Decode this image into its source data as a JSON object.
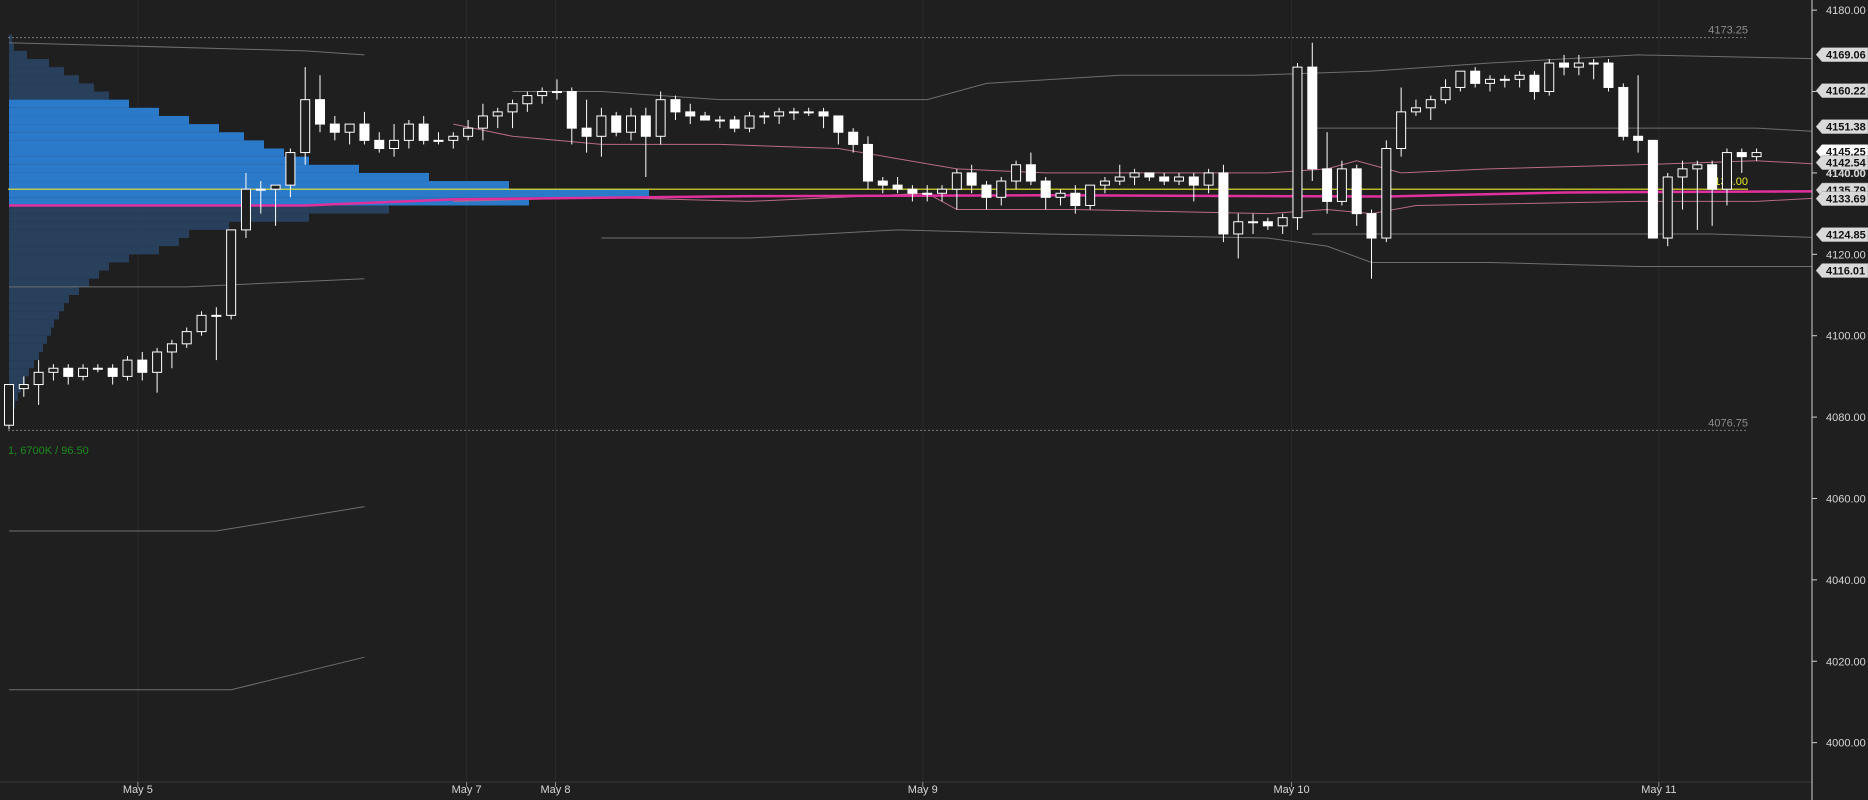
{
  "chart_data": {
    "type": "candlestick",
    "y_axis": {
      "ylim": [
        3995,
        4182
      ],
      "ticks": [
        "4180.00",
        "4160.00",
        "4140.00",
        "4120.00",
        "4100.00",
        "4080.00",
        "4060.00",
        "4040.00",
        "4020.00",
        "4000.00"
      ]
    },
    "x_axis": {
      "labels": [
        {
          "text": "May 5",
          "bar": 8.7
        },
        {
          "text": "May 7",
          "bar": 30.9
        },
        {
          "text": "May 8",
          "bar": 36.9
        },
        {
          "text": "May 9",
          "bar": 61.7
        },
        {
          "text": "May 10",
          "bar": 86.6
        },
        {
          "text": "May 11",
          "bar": 111.4
        }
      ],
      "bar_count": 123
    },
    "price_tags": [
      {
        "text": "4169.06",
        "value": 4169.06,
        "style": "light"
      },
      {
        "text": "4160.22",
        "value": 4160.22,
        "style": "light"
      },
      {
        "text": "4151.38",
        "value": 4151.38,
        "style": "light"
      },
      {
        "text": "4145.25",
        "value": 4145.25,
        "style": "white"
      },
      {
        "text": "4142.54",
        "value": 4142.54,
        "style": "light"
      },
      {
        "text": "4140.00",
        "value": 4140.0,
        "style": "plain"
      },
      {
        "text": "4135.79",
        "value": 4135.79,
        "style": "light"
      },
      {
        "text": "4133.69",
        "value": 4133.69,
        "style": "light"
      },
      {
        "text": "4124.85",
        "value": 4124.85,
        "style": "light"
      },
      {
        "text": "4116.01",
        "value": 4116.01,
        "style": "light"
      }
    ],
    "reference_lines": [
      {
        "label": "4173.25",
        "value": 4173.25
      },
      {
        "label": "4076.75",
        "value": 4076.75
      }
    ],
    "poc": {
      "label": "4136.00",
      "value": 4136.0
    },
    "volume_label": "1, 6700K / 96.50",
    "colors": {
      "background": "#1f1f1f",
      "candle_up_fill": "#1f1f1f",
      "candle_down_fill": "#ffffff",
      "candle_outline": "#ffffff",
      "profile_value_area": "#2b79c9",
      "profile_outside": "#28405c",
      "poc_line": "#e8e82a",
      "vwap": "#e0309e",
      "band_inner": "#b86a86",
      "band_outer": "#6e6e6e",
      "volume_label": "#1c8a1c"
    },
    "candles": [
      [
        4078,
        4088,
        4077,
        4088
      ],
      [
        4087,
        4090,
        4085,
        4088
      ],
      [
        4088,
        4094,
        4083,
        4091
      ],
      [
        4091,
        4093,
        4089,
        4092
      ],
      [
        4092,
        4093,
        4088,
        4090
      ],
      [
        4090,
        4093,
        4089,
        4092
      ],
      [
        4092,
        4093,
        4091,
        4092
      ],
      [
        4092,
        4093,
        4088,
        4090
      ],
      [
        4090,
        4095,
        4089,
        4094
      ],
      [
        4094,
        4096,
        4089,
        4091
      ],
      [
        4091,
        4097,
        4086,
        4096
      ],
      [
        4096,
        4099,
        4092,
        4098
      ],
      [
        4098,
        4102,
        4097,
        4101
      ],
      [
        4101,
        4106,
        4100,
        4105
      ],
      [
        4105,
        4107,
        4094,
        4105
      ],
      [
        4105,
        4126,
        4104,
        4126
      ],
      [
        4126,
        4140,
        4124,
        4136
      ],
      [
        4136,
        4138,
        4130,
        4136
      ],
      [
        4136,
        4137,
        4127,
        4137
      ],
      [
        4137,
        4146,
        4134,
        4145
      ],
      [
        4145,
        4166,
        4142,
        4158
      ],
      [
        4158,
        4164,
        4150,
        4152
      ],
      [
        4152,
        4154,
        4148,
        4150
      ],
      [
        4150,
        4152,
        4147,
        4152
      ],
      [
        4152,
        4155,
        4147,
        4148
      ],
      [
        4148,
        4150,
        4145,
        4146
      ],
      [
        4146,
        4152,
        4144,
        4148
      ],
      [
        4148,
        4153,
        4146,
        4152
      ],
      [
        4152,
        4154,
        4147,
        4148
      ],
      [
        4148,
        4150,
        4147,
        4148
      ],
      [
        4148,
        4150,
        4146,
        4149
      ],
      [
        4149,
        4153,
        4148,
        4151
      ],
      [
        4151,
        4157,
        4148,
        4154
      ],
      [
        4154,
        4156,
        4151,
        4155
      ],
      [
        4155,
        4158,
        4151,
        4157
      ],
      [
        4157,
        4160,
        4155,
        4159
      ],
      [
        4159,
        4161,
        4157,
        4160
      ],
      [
        4160,
        4163,
        4158,
        4160
      ],
      [
        4160,
        4161,
        4147,
        4151
      ],
      [
        4151,
        4158,
        4145,
        4149
      ],
      [
        4149,
        4156,
        4144,
        4154
      ],
      [
        4154,
        4155,
        4149,
        4150
      ],
      [
        4150,
        4156,
        4148,
        4154
      ],
      [
        4154,
        4156,
        4139,
        4149
      ],
      [
        4149,
        4160,
        4147,
        4158
      ],
      [
        4158,
        4159,
        4153,
        4155
      ],
      [
        4155,
        4157,
        4152,
        4154
      ],
      [
        4154,
        4155,
        4153,
        4153
      ],
      [
        4153,
        4154,
        4151,
        4153
      ],
      [
        4153,
        4154,
        4150,
        4151
      ],
      [
        4151,
        4155,
        4150,
        4154
      ],
      [
        4154,
        4155,
        4152,
        4154
      ],
      [
        4154,
        4156,
        4152,
        4155
      ],
      [
        4155,
        4156,
        4153,
        4155
      ],
      [
        4155,
        4156,
        4154,
        4155
      ],
      [
        4155,
        4156,
        4151,
        4154
      ],
      [
        4154,
        4154,
        4147,
        4150
      ],
      [
        4150,
        4151,
        4145,
        4147
      ],
      [
        4147,
        4149,
        4136,
        4138
      ],
      [
        4138,
        4139,
        4135,
        4137
      ],
      [
        4137,
        4139,
        4135,
        4136
      ],
      [
        4136,
        4137,
        4133,
        4135
      ],
      [
        4135,
        4137,
        4133,
        4135
      ],
      [
        4135,
        4137,
        4133,
        4136
      ],
      [
        4136,
        4141,
        4131,
        4140
      ],
      [
        4140,
        4142,
        4135,
        4137
      ],
      [
        4137,
        4138,
        4131,
        4134
      ],
      [
        4134,
        4139,
        4132,
        4138
      ],
      [
        4138,
        4143,
        4136,
        4142
      ],
      [
        4142,
        4145,
        4137,
        4138
      ],
      [
        4138,
        4139,
        4131,
        4134
      ],
      [
        4134,
        4136,
        4132,
        4135
      ],
      [
        4135,
        4137,
        4130,
        4132
      ],
      [
        4132,
        4137,
        4131,
        4137
      ],
      [
        4137,
        4139,
        4135,
        4138
      ],
      [
        4138,
        4142,
        4137,
        4139
      ],
      [
        4139,
        4141,
        4137,
        4140
      ],
      [
        4140,
        4140,
        4138,
        4139
      ],
      [
        4139,
        4140,
        4137,
        4138
      ],
      [
        4138,
        4140,
        4137,
        4139
      ],
      [
        4139,
        4140,
        4133,
        4137
      ],
      [
        4137,
        4141,
        4135,
        4140
      ],
      [
        4140,
        4142,
        4123,
        4125
      ],
      [
        4125,
        4130,
        4119,
        4128
      ],
      [
        4128,
        4130,
        4125,
        4128
      ],
      [
        4128,
        4129,
        4126,
        4127
      ],
      [
        4127,
        4130,
        4125,
        4129
      ],
      [
        4129,
        4167,
        4126,
        4166
      ],
      [
        4166,
        4172,
        4138,
        4141
      ],
      [
        4141,
        4150,
        4130,
        4133
      ],
      [
        4133,
        4143,
        4132,
        4141
      ],
      [
        4141,
        4142,
        4127,
        4130
      ],
      [
        4130,
        4131,
        4114,
        4124
      ],
      [
        4124,
        4148,
        4123,
        4146
      ],
      [
        4146,
        4161,
        4144,
        4155
      ],
      [
        4155,
        4158,
        4154,
        4156
      ],
      [
        4156,
        4159,
        4153,
        4158
      ],
      [
        4158,
        4163,
        4157,
        4161
      ],
      [
        4161,
        4165,
        4160,
        4165
      ],
      [
        4165,
        4166,
        4161,
        4162
      ],
      [
        4162,
        4164,
        4160,
        4163
      ],
      [
        4163,
        4164,
        4161,
        4163
      ],
      [
        4163,
        4165,
        4161,
        4164
      ],
      [
        4164,
        4165,
        4158,
        4160
      ],
      [
        4160,
        4168,
        4159,
        4167
      ],
      [
        4167,
        4169,
        4164,
        4166
      ],
      [
        4166,
        4169,
        4164,
        4167
      ],
      [
        4167,
        4168,
        4163,
        4167
      ],
      [
        4167,
        4168,
        4160,
        4161
      ],
      [
        4161,
        4162,
        4148,
        4149
      ],
      [
        4149,
        4164,
        4145,
        4148
      ],
      [
        4148,
        4148,
        4124,
        4124
      ],
      [
        4124,
        4140,
        4122,
        4139
      ],
      [
        4139,
        4143,
        4131,
        4141
      ],
      [
        4141,
        4143,
        4126,
        4142
      ],
      [
        4142,
        4143,
        4127,
        4136
      ],
      [
        4136,
        4146,
        4132,
        4145
      ],
      [
        4145,
        4146,
        4140,
        4144
      ],
      [
        4144,
        4146,
        4143,
        4145
      ]
    ],
    "vwap": [
      [
        0,
        4132
      ],
      [
        20,
        4132
      ],
      [
        30,
        4133.5
      ],
      [
        50,
        4134.3
      ],
      [
        70,
        4134.5
      ],
      [
        85,
        4134.3
      ],
      [
        93,
        4134.2
      ],
      [
        105,
        4135.2
      ],
      [
        123,
        4135.5
      ]
    ],
    "bands": [
      [
        [
          0,
          4172
        ],
        [
          20,
          4170
        ],
        [
          24,
          4169
        ]
      ],
      [
        [
          0,
          4112
        ],
        [
          12,
          4112
        ],
        [
          24,
          4114
        ]
      ],
      [
        [
          0,
          4052
        ],
        [
          14,
          4052
        ],
        [
          24,
          4058
        ]
      ],
      [
        [
          0,
          4013
        ],
        [
          15,
          4013
        ],
        [
          24,
          4021
        ]
      ],
      [
        [
          30,
          4152
        ],
        [
          34,
          4149
        ],
        [
          40,
          4147
        ],
        [
          48,
          4147
        ],
        [
          56,
          4146
        ],
        [
          64,
          4141
        ],
        [
          70,
          4140
        ],
        [
          85,
          4140
        ],
        [
          89,
          4141
        ],
        [
          91,
          4143
        ],
        [
          94,
          4140
        ],
        [
          100,
          4141
        ],
        [
          110,
          4142
        ],
        [
          118,
          4143
        ],
        [
          123,
          4142
        ]
      ],
      [
        [
          30,
          4133
        ],
        [
          40,
          4134
        ],
        [
          50,
          4133
        ],
        [
          62,
          4135
        ],
        [
          64,
          4131
        ],
        [
          72,
          4131
        ],
        [
          85,
          4130
        ],
        [
          89,
          4131
        ],
        [
          92,
          4130
        ],
        [
          95,
          4132
        ],
        [
          110,
          4133
        ],
        [
          118,
          4133
        ],
        [
          123,
          4134
        ]
      ],
      [
        [
          34,
          4160
        ],
        [
          40,
          4160
        ],
        [
          48,
          4158
        ],
        [
          55,
          4158
        ],
        [
          62,
          4158
        ],
        [
          66,
          4162
        ],
        [
          75,
          4164
        ],
        [
          84,
          4164
        ],
        [
          92,
          4165
        ],
        [
          100,
          4167
        ],
        [
          110,
          4169
        ],
        [
          123,
          4168
        ]
      ],
      [
        [
          40,
          4124
        ],
        [
          50,
          4124
        ],
        [
          60,
          4126
        ],
        [
          70,
          4125
        ],
        [
          85,
          4124
        ],
        [
          89,
          4122
        ],
        [
          92,
          4118
        ],
        [
          100,
          4118
        ],
        [
          110,
          4117
        ],
        [
          123,
          4117
        ]
      ],
      [
        [
          88,
          4151
        ],
        [
          100,
          4151
        ],
        [
          118,
          4151
        ],
        [
          123,
          4150
        ]
      ],
      [
        [
          88,
          4125
        ],
        [
          100,
          4125
        ],
        [
          115,
          4125
        ],
        [
          123,
          4124
        ]
      ]
    ],
    "profile_a": [
      [
        4173,
        3
      ],
      [
        4171,
        5
      ],
      [
        4169,
        18
      ],
      [
        4167,
        40
      ],
      [
        4165,
        55
      ],
      [
        4163,
        70
      ],
      [
        4161,
        85
      ],
      [
        4159,
        100
      ],
      [
        4157,
        120
      ],
      [
        4155,
        150
      ],
      [
        4153,
        180
      ],
      [
        4151,
        210
      ],
      [
        4149,
        235
      ],
      [
        4147,
        255
      ],
      [
        4145,
        275
      ],
      [
        4143,
        300
      ],
      [
        4141,
        350
      ],
      [
        4139,
        420
      ],
      [
        4137,
        500
      ],
      [
        4135,
        640
      ],
      [
        4133,
        520
      ],
      [
        4131,
        380
      ],
      [
        4129,
        300
      ],
      [
        4127,
        220
      ],
      [
        4125,
        180
      ],
      [
        4123,
        170
      ],
      [
        4121,
        150
      ],
      [
        4119,
        120
      ],
      [
        4117,
        100
      ],
      [
        4115,
        90
      ],
      [
        4113,
        80
      ],
      [
        4111,
        70
      ],
      [
        4109,
        60
      ],
      [
        4107,
        55
      ],
      [
        4105,
        50
      ],
      [
        4103,
        45
      ],
      [
        4101,
        42
      ],
      [
        4099,
        38
      ],
      [
        4097,
        34
      ],
      [
        4095,
        30
      ],
      [
        4093,
        25
      ],
      [
        4091,
        20
      ],
      [
        4089,
        16
      ],
      [
        4087,
        12
      ],
      [
        4085,
        9
      ],
      [
        4083,
        6
      ],
      [
        4081,
        4
      ],
      [
        4079,
        2
      ]
    ]
  }
}
